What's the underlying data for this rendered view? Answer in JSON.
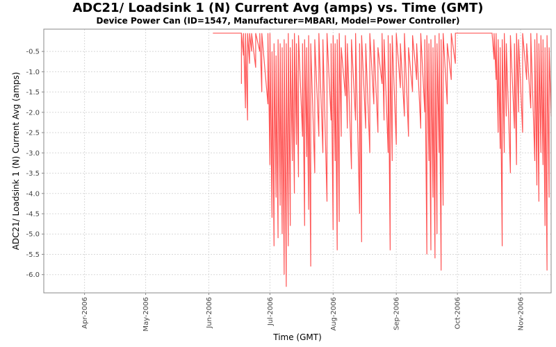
{
  "chart_data": {
    "type": "line",
    "title": "ADC21/ Loadsink 1 (N) Current Avg (amps) vs. Time (GMT)",
    "subtitle": "Device Power Can (ID=1547, Manufacturer=MBARI, Model=Power Controller)",
    "xlabel": "Time (GMT)",
    "ylabel": "ADC21/ Loadsink 1 (N) Current Avg (amps)",
    "xlim": [
      "2006-03-12",
      "2006-11-16"
    ],
    "ylim": [
      -6.45,
      0.05
    ],
    "x_ticks": [
      "Apr-2006",
      "May-2006",
      "Jun-2006",
      "Jul-2006",
      "Aug-2006",
      "Sep-2006",
      "Oct-2006",
      "Nov-2006"
    ],
    "x_tick_dates": [
      "2006-04-01",
      "2006-05-01",
      "2006-06-01",
      "2006-07-01",
      "2006-08-01",
      "2006-09-01",
      "2006-10-01",
      "2006-11-01"
    ],
    "y_ticks": [
      -0.5,
      -1.0,
      -1.5,
      -2.0,
      -2.5,
      -3.0,
      -3.5,
      -4.0,
      -4.5,
      -5.0,
      -5.5,
      -6.0
    ],
    "grid": true,
    "series": [
      {
        "color": "#ff5555",
        "data": [
          [
            "2006-06-03",
            -0.05
          ],
          [
            "2006-06-17",
            -0.05
          ],
          [
            "2006-06-17",
            -1.3
          ],
          [
            "2006-06-17",
            -0.05
          ],
          [
            "2006-06-18",
            -0.6
          ],
          [
            "2006-06-18",
            -0.05
          ],
          [
            "2006-06-19",
            -1.9
          ],
          [
            "2006-06-19",
            -0.05
          ],
          [
            "2006-06-20",
            -2.2
          ],
          [
            "2006-06-20",
            -0.05
          ],
          [
            "2006-06-21",
            -0.8
          ],
          [
            "2006-06-21",
            -0.05
          ],
          [
            "2006-06-22",
            -0.5
          ],
          [
            "2006-06-22",
            -0.05
          ],
          [
            "2006-06-24",
            -0.9
          ],
          [
            "2006-06-24",
            -0.05
          ],
          [
            "2006-06-26",
            -0.5
          ],
          [
            "2006-06-26",
            -0.05
          ],
          [
            "2006-06-27",
            -1.5
          ],
          [
            "2006-06-27",
            -0.05
          ],
          [
            "2006-06-30",
            -1.8
          ],
          [
            "2006-06-30",
            -0.05
          ],
          [
            "2006-07-01",
            -3.3
          ],
          [
            "2006-07-01",
            -0.05
          ],
          [
            "2006-07-02",
            -4.6
          ],
          [
            "2006-07-02",
            -0.5
          ],
          [
            "2006-07-03",
            -5.3
          ],
          [
            "2006-07-03",
            -0.3
          ],
          [
            "2006-07-04",
            -4.1
          ],
          [
            "2006-07-04",
            -0.6
          ],
          [
            "2006-07-05",
            -5.1
          ],
          [
            "2006-07-05",
            -0.2
          ],
          [
            "2006-07-06",
            -4.3
          ],
          [
            "2006-07-06",
            -0.3
          ],
          [
            "2006-07-07",
            -5.0
          ],
          [
            "2006-07-07",
            -0.4
          ],
          [
            "2006-07-08",
            -6.0
          ],
          [
            "2006-07-08",
            -0.2
          ],
          [
            "2006-07-09",
            -6.3
          ],
          [
            "2006-07-09",
            -0.3
          ],
          [
            "2006-07-10",
            -5.3
          ],
          [
            "2006-07-10",
            -0.05
          ],
          [
            "2006-07-11",
            -4.8
          ],
          [
            "2006-07-11",
            -0.4
          ],
          [
            "2006-07-12",
            -3.2
          ],
          [
            "2006-07-12",
            -0.2
          ],
          [
            "2006-07-13",
            -4.0
          ],
          [
            "2006-07-13",
            -0.05
          ],
          [
            "2006-07-14",
            -2.8
          ],
          [
            "2006-07-14",
            -0.3
          ],
          [
            "2006-07-15",
            -3.6
          ],
          [
            "2006-07-15",
            -0.1
          ],
          [
            "2006-07-17",
            -2.6
          ],
          [
            "2006-07-17",
            -0.3
          ],
          [
            "2006-07-18",
            -4.8
          ],
          [
            "2006-07-18",
            -0.2
          ],
          [
            "2006-07-19",
            -3.1
          ],
          [
            "2006-07-19",
            -0.4
          ],
          [
            "2006-07-20",
            -4.4
          ],
          [
            "2006-07-20",
            -0.1
          ],
          [
            "2006-07-21",
            -5.8
          ],
          [
            "2006-07-21",
            -0.3
          ],
          [
            "2006-07-23",
            -3.5
          ],
          [
            "2006-07-23",
            -0.2
          ],
          [
            "2006-07-25",
            -2.6
          ],
          [
            "2006-07-25",
            -0.05
          ],
          [
            "2006-07-27",
            -3.0
          ],
          [
            "2006-07-27",
            -0.2
          ],
          [
            "2006-07-29",
            -4.2
          ],
          [
            "2006-07-29",
            -0.05
          ],
          [
            "2006-07-31",
            -2.2
          ],
          [
            "2006-07-31",
            -0.3
          ],
          [
            "2006-08-01",
            -4.9
          ],
          [
            "2006-08-01",
            -0.1
          ],
          [
            "2006-08-02",
            -3.2
          ],
          [
            "2006-08-02",
            -0.3
          ],
          [
            "2006-08-03",
            -5.4
          ],
          [
            "2006-08-03",
            -0.2
          ],
          [
            "2006-08-04",
            -4.7
          ],
          [
            "2006-08-04",
            -0.05
          ],
          [
            "2006-08-05",
            -2.6
          ],
          [
            "2006-08-05",
            -0.4
          ],
          [
            "2006-08-07",
            -1.6
          ],
          [
            "2006-08-07",
            -0.1
          ],
          [
            "2006-08-08",
            -2.4
          ],
          [
            "2006-08-08",
            -0.3
          ],
          [
            "2006-08-10",
            -3.4
          ],
          [
            "2006-08-10",
            -0.2
          ],
          [
            "2006-08-12",
            -2.2
          ],
          [
            "2006-08-12",
            -0.05
          ],
          [
            "2006-08-14",
            -4.5
          ],
          [
            "2006-08-14",
            -0.3
          ],
          [
            "2006-08-15",
            -5.2
          ],
          [
            "2006-08-15",
            -0.1
          ],
          [
            "2006-08-17",
            -2.4
          ],
          [
            "2006-08-17",
            -0.3
          ],
          [
            "2006-08-19",
            -3.0
          ],
          [
            "2006-08-19",
            -0.05
          ],
          [
            "2006-08-21",
            -1.8
          ],
          [
            "2006-08-21",
            -0.2
          ],
          [
            "2006-08-23",
            -2.5
          ],
          [
            "2006-08-23",
            -0.4
          ],
          [
            "2006-08-25",
            -1.3
          ],
          [
            "2006-08-25",
            -0.05
          ],
          [
            "2006-08-26",
            -2.2
          ],
          [
            "2006-08-26",
            -0.2
          ],
          [
            "2006-08-28",
            -3.0
          ],
          [
            "2006-08-28",
            -0.1
          ],
          [
            "2006-08-29",
            -5.4
          ],
          [
            "2006-08-29",
            -0.3
          ],
          [
            "2006-08-30",
            -3.2
          ],
          [
            "2006-08-30",
            -0.1
          ],
          [
            "2006-09-01",
            -2.8
          ],
          [
            "2006-09-01",
            -0.05
          ],
          [
            "2006-09-03",
            -1.4
          ],
          [
            "2006-09-03",
            -0.3
          ],
          [
            "2006-09-05",
            -2.1
          ],
          [
            "2006-09-05",
            -0.05
          ],
          [
            "2006-09-07",
            -2.6
          ],
          [
            "2006-09-07",
            -0.4
          ],
          [
            "2006-09-09",
            -1.5
          ],
          [
            "2006-09-09",
            -0.1
          ],
          [
            "2006-09-11",
            -1.2
          ],
          [
            "2006-09-11",
            -0.3
          ],
          [
            "2006-09-13",
            -2.4
          ],
          [
            "2006-09-13",
            -0.05
          ],
          [
            "2006-09-15",
            -2.0
          ],
          [
            "2006-09-15",
            -0.2
          ],
          [
            "2006-09-16",
            -5.5
          ],
          [
            "2006-09-16",
            -0.1
          ],
          [
            "2006-09-17",
            -3.2
          ],
          [
            "2006-09-17",
            -0.3
          ],
          [
            "2006-09-18",
            -5.4
          ],
          [
            "2006-09-18",
            -0.2
          ],
          [
            "2006-09-19",
            -4.1
          ],
          [
            "2006-09-19",
            -0.4
          ],
          [
            "2006-09-20",
            -5.6
          ],
          [
            "2006-09-20",
            -0.1
          ],
          [
            "2006-09-21",
            -5.0
          ],
          [
            "2006-09-21",
            -0.3
          ],
          [
            "2006-09-22",
            -3.0
          ],
          [
            "2006-09-22",
            -0.05
          ],
          [
            "2006-09-23",
            -5.9
          ],
          [
            "2006-09-23",
            -0.2
          ],
          [
            "2006-09-24",
            -4.3
          ],
          [
            "2006-09-24",
            -0.05
          ],
          [
            "2006-09-26",
            -1.8
          ],
          [
            "2006-09-26",
            -0.3
          ],
          [
            "2006-09-28",
            -1.2
          ],
          [
            "2006-09-28",
            -0.05
          ],
          [
            "2006-09-30",
            -0.8
          ],
          [
            "2006-09-30",
            -0.05
          ],
          [
            "2006-10-01",
            -0.05
          ],
          [
            "2006-10-18",
            -0.05
          ],
          [
            "2006-10-19",
            -0.7
          ],
          [
            "2006-10-19",
            -0.05
          ],
          [
            "2006-10-20",
            -1.2
          ],
          [
            "2006-10-20",
            -0.05
          ],
          [
            "2006-10-21",
            -2.5
          ],
          [
            "2006-10-21",
            -0.2
          ],
          [
            "2006-10-22",
            -2.9
          ],
          [
            "2006-10-22",
            -0.4
          ],
          [
            "2006-10-23",
            -5.3
          ],
          [
            "2006-10-23",
            -0.2
          ],
          [
            "2006-10-24",
            -3.0
          ],
          [
            "2006-10-24",
            -0.05
          ],
          [
            "2006-10-25",
            -2.1
          ],
          [
            "2006-10-25",
            -0.3
          ],
          [
            "2006-10-27",
            -3.5
          ],
          [
            "2006-10-27",
            -0.1
          ],
          [
            "2006-10-29",
            -2.4
          ],
          [
            "2006-10-29",
            -0.3
          ],
          [
            "2006-10-30",
            -3.3
          ],
          [
            "2006-10-30",
            -0.05
          ],
          [
            "2006-10-31",
            -2.0
          ],
          [
            "2006-10-31",
            -0.2
          ],
          [
            "2006-11-02",
            -2.5
          ],
          [
            "2006-11-02",
            -0.05
          ],
          [
            "2006-11-04",
            -1.2
          ],
          [
            "2006-11-04",
            -0.3
          ],
          [
            "2006-11-06",
            -1.9
          ],
          [
            "2006-11-06",
            -0.05
          ],
          [
            "2006-11-08",
            -3.2
          ],
          [
            "2006-11-08",
            -0.2
          ],
          [
            "2006-11-09",
            -3.8
          ],
          [
            "2006-11-09",
            -0.05
          ],
          [
            "2006-11-10",
            -4.2
          ],
          [
            "2006-11-10",
            -0.3
          ],
          [
            "2006-11-11",
            -3.0
          ],
          [
            "2006-11-11",
            -0.1
          ],
          [
            "2006-11-12",
            -3.3
          ],
          [
            "2006-11-12",
            -0.2
          ],
          [
            "2006-11-13",
            -4.8
          ],
          [
            "2006-11-13",
            -0.4
          ],
          [
            "2006-11-14",
            -5.9
          ],
          [
            "2006-11-14",
            -0.1
          ],
          [
            "2006-11-15",
            -4.1
          ],
          [
            "2006-11-15",
            -0.4
          ],
          [
            "2006-11-16",
            -2.1
          ]
        ]
      }
    ]
  }
}
